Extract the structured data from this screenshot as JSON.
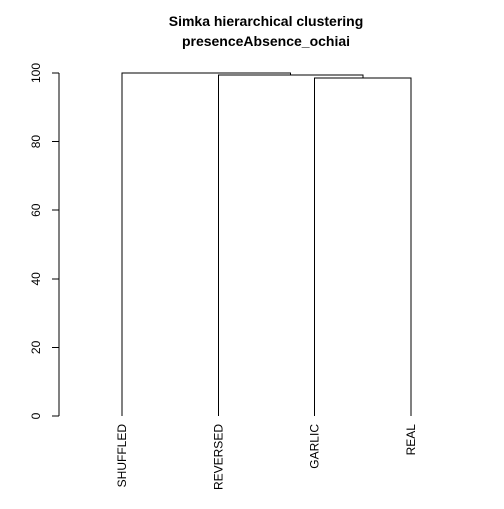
{
  "chart_data": {
    "type": "dendrogram",
    "title": "Simka hierarchical clustering",
    "subtitle": "presenceAbsence_ochiai",
    "xlabel": "",
    "ylabel": "",
    "ylim": [
      0,
      100
    ],
    "y_ticks": [
      0,
      20,
      40,
      60,
      80,
      100
    ],
    "y_tick_labels": [
      "0",
      "20",
      "40",
      "60",
      "80",
      "100"
    ],
    "grid": false,
    "leaves": [
      "SHUFFLED",
      "REVERSED",
      "GARLIC",
      "REAL"
    ],
    "merges": [
      {
        "left": "GARLIC",
        "right": "REAL",
        "height": 98.5
      },
      {
        "left": "REVERSED",
        "right": "GARLIC+REAL",
        "height": 99.4
      },
      {
        "left": "SHUFFLED",
        "right": "REVERSED+GARLIC+REAL",
        "height": 100
      }
    ],
    "line_color": "#000000"
  }
}
